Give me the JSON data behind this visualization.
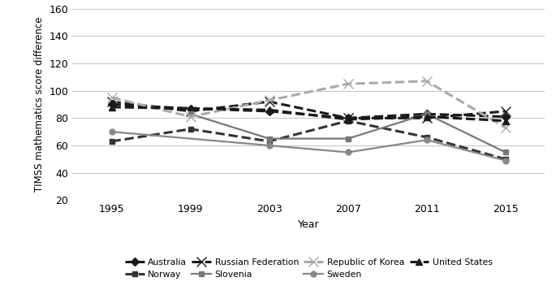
{
  "years": [
    1995,
    1999,
    2003,
    2007,
    2011,
    2015
  ],
  "series": [
    {
      "name": "Australia",
      "values": [
        90,
        87,
        85,
        80,
        83,
        81
      ],
      "color": "#1a1a1a",
      "linestyle": "dashed",
      "marker": "D",
      "markersize": 5,
      "linewidth": 2.2,
      "markerfacecolor": "#1a1a1a"
    },
    {
      "name": "Norway",
      "values": [
        63,
        72,
        63,
        78,
        66,
        50
      ],
      "color": "#333333",
      "linestyle": "dashed",
      "marker": "s",
      "markersize": 5,
      "linewidth": 2.2,
      "markerfacecolor": "#333333"
    },
    {
      "name": "Russian Federation",
      "values": [
        92,
        85,
        92,
        80,
        80,
        85
      ],
      "color": "#1a1a1a",
      "linestyle": "dashed",
      "marker": "x",
      "markersize": 8,
      "linewidth": 2.2,
      "markerfacecolor": "#1a1a1a"
    },
    {
      "name": "Slovenia",
      "values": [
        null,
        83,
        65,
        65,
        83,
        55
      ],
      "color": "#777777",
      "linestyle": "solid",
      "marker": "s",
      "markersize": 5,
      "linewidth": 1.6,
      "markerfacecolor": "#777777"
    },
    {
      "name": "Republic of Korea",
      "values": [
        95,
        81,
        93,
        105,
        107,
        73
      ],
      "color": "#aaaaaa",
      "linestyle": "dashed",
      "marker": "x",
      "markersize": 9,
      "linewidth": 2.2,
      "markerfacecolor": "#aaaaaa"
    },
    {
      "name": "Sweden",
      "values": [
        70,
        null,
        60,
        55,
        64,
        49
      ],
      "color": "#888888",
      "linestyle": "solid",
      "marker": "o",
      "markersize": 5,
      "linewidth": 1.6,
      "markerfacecolor": "#888888"
    },
    {
      "name": "United States",
      "values": [
        88,
        null,
        86,
        79,
        81,
        78
      ],
      "color": "#1a1a1a",
      "linestyle": "dashed",
      "marker": "^",
      "markersize": 6,
      "linewidth": 2.2,
      "markerfacecolor": "#1a1a1a"
    }
  ],
  "legend_row1": [
    "Australia",
    "Norway",
    "Russian Federation",
    "Slovenia"
  ],
  "legend_row2": [
    "Republic of Korea",
    "Sweden",
    "United States"
  ],
  "ylabel": "TIMSS mathematics score difference",
  "xlabel": "Year",
  "ylim": [
    20,
    160
  ],
  "yticks": [
    20,
    40,
    60,
    80,
    100,
    120,
    140,
    160
  ],
  "xticks": [
    1995,
    1999,
    2003,
    2007,
    2011,
    2015
  ],
  "background_color": "#ffffff",
  "grid_color": "#c8c8c8"
}
